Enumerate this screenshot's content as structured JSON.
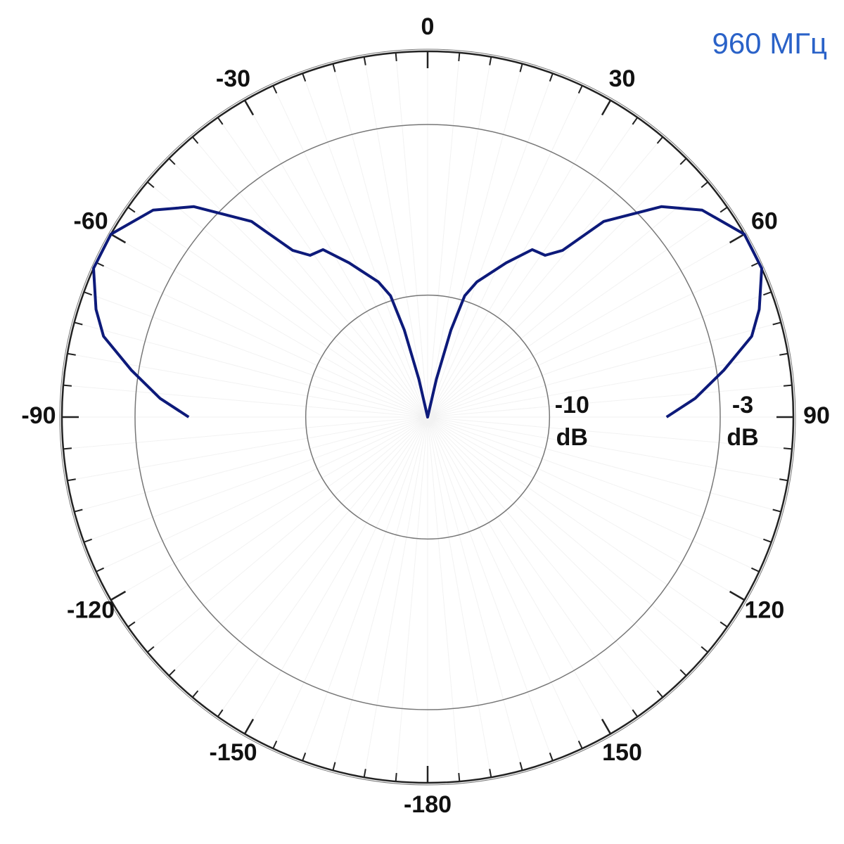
{
  "chart_data": {
    "type": "polar",
    "title": "960 МГц",
    "theta": [
      -90,
      -86,
      -81,
      -76,
      -72,
      -66,
      -60,
      -53,
      -48,
      -42,
      -39,
      -36,
      -32,
      -27,
      -20,
      -17,
      -15,
      -13,
      0,
      13,
      15,
      17,
      20,
      27,
      32,
      36,
      39,
      42,
      48,
      53,
      60,
      66,
      72,
      76,
      81,
      86,
      90
    ],
    "values": [
      -5.2,
      -4.0,
      -2.7,
      -1.3,
      -0.7,
      0,
      0,
      -0.9,
      -2.1,
      -4.2,
      -6.2,
      -6.8,
      -6.9,
      -7.9,
      -9.1,
      -9.8,
      -11.3,
      -13.4,
      -15,
      -13.4,
      -11.3,
      -9.8,
      -9.1,
      -7.9,
      -6.9,
      -6.8,
      -6.2,
      -4.2,
      -2.1,
      -0.9,
      0,
      0,
      -0.7,
      -1.3,
      -2.7,
      -4.0,
      -5.2
    ],
    "color": "#0d1a7a",
    "rlim": [
      -15,
      0
    ],
    "rticks": [
      {
        "value": -10,
        "label": "-10 dB"
      },
      {
        "value": -3,
        "label": "-3 dB"
      }
    ],
    "theta_ticks": [
      0,
      30,
      60,
      90,
      120,
      150,
      -180,
      -150,
      -120,
      -90,
      -60,
      -30
    ],
    "theta_minor_step": 5
  }
}
